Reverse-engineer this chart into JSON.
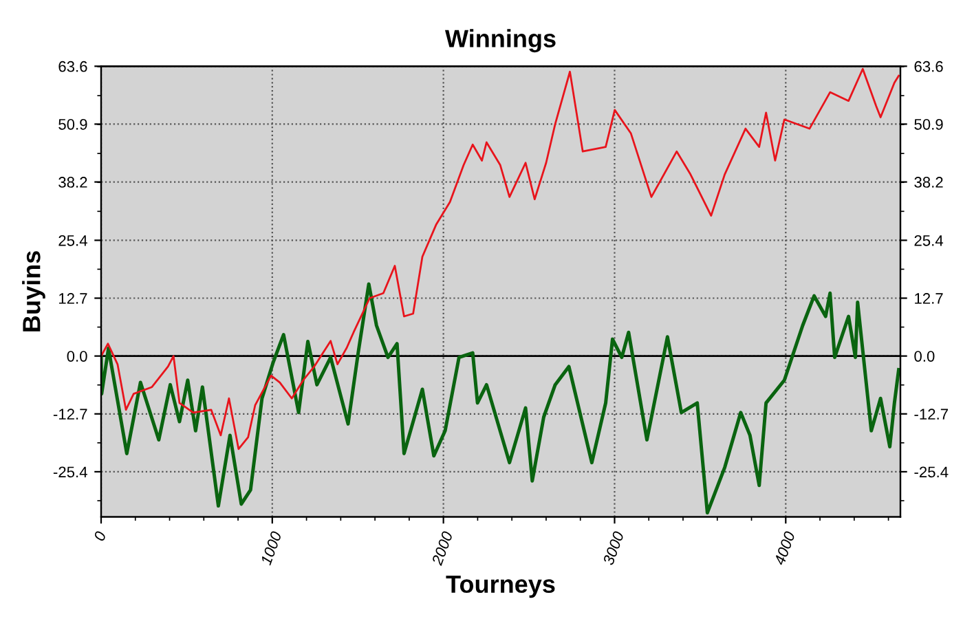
{
  "chart_data": {
    "type": "line",
    "title": "Winnings",
    "xlabel": "Tourneys",
    "ylabel": "Buyins",
    "xlim": [
      0,
      4670
    ],
    "xticks": [
      0,
      1000,
      2000,
      3000,
      4000
    ],
    "ylim": [
      -35.3,
      63.6
    ],
    "yticks": [
      -25.4,
      -12.7,
      {
        "value": 0,
        "label": "0.0"
      },
      12.7,
      25.4,
      38.2,
      50.9,
      63.6
    ],
    "y2lim": [
      -35.3,
      63.6
    ],
    "y2ticks": [
      -25.4,
      -12.7,
      {
        "value": 0,
        "label": "0.0"
      },
      12.7,
      25.4,
      38.2,
      50.9,
      63.6
    ],
    "grid": true,
    "legend": false,
    "line_style": "solid",
    "marker": "none",
    "ref_lines": [
      {
        "axis": "y",
        "value": 0,
        "label": null,
        "color": "#000000",
        "line_style": "solid"
      }
    ],
    "series": [
      {
        "color": "#e8141c",
        "x": [
          0,
          40,
          96,
          145,
          190,
          297,
          391,
          423,
          458,
          538,
          643,
          699,
          747,
          803,
          859,
          900,
          993,
          1044,
          1114,
          1181,
          1245,
          1341,
          1381,
          1435,
          1475,
          1569,
          1649,
          1716,
          1770,
          1823,
          1877,
          1957,
          2038,
          2118,
          2171,
          2225,
          2252,
          2332,
          2386,
          2480,
          2533,
          2600,
          2653,
          2739,
          2814,
          2948,
          3001,
          3095,
          3215,
          3363,
          3443,
          3564,
          3644,
          3765,
          3845,
          3885,
          3938,
          3992,
          4139,
          4259,
          4367,
          4450,
          4528,
          4554,
          4635,
          4660
        ],
        "values": [
          0,
          2.7,
          -1.8,
          -11.8,
          -8.3,
          -6.8,
          -2.3,
          0,
          -10.3,
          -12.4,
          -11.8,
          -17.4,
          -9.3,
          -20.4,
          -17.8,
          -10.8,
          -4.3,
          -5.8,
          -9.3,
          -5.3,
          -2.3,
          3.3,
          -1.8,
          1.8,
          5.2,
          12.7,
          13.8,
          19.8,
          8.7,
          9.3,
          21.8,
          28.8,
          33.8,
          41.9,
          46.4,
          42.9,
          46.9,
          41.9,
          34.9,
          42.4,
          34.4,
          42.4,
          50.9,
          62.4,
          44.9,
          45.9,
          54,
          48.9,
          34.9,
          44.9,
          39.9,
          30.8,
          39.9,
          49.9,
          45.9,
          53.4,
          42.9,
          51.9,
          49.9,
          57.9,
          56,
          63,
          54.9,
          52.4,
          60,
          61.5
        ]
      },
      {
        "color": "#0a6410",
        "x": [
          0,
          3,
          43,
          150,
          230,
          337,
          404,
          458,
          506,
          552,
          592,
          685,
          753,
          819,
          873,
          940,
          1006,
          1066,
          1154,
          1208,
          1261,
          1341,
          1443,
          1502,
          1564,
          1609,
          1676,
          1729,
          1770,
          1877,
          1944,
          2010,
          2091,
          2171,
          2199,
          2252,
          2386,
          2480,
          2519,
          2586,
          2653,
          2733,
          2867,
          2948,
          2988,
          3042,
          3082,
          3189,
          3309,
          3390,
          3483,
          3542,
          3644,
          3737,
          3791,
          3845,
          3885,
          3992,
          4099,
          4166,
          4233,
          4259,
          4286,
          4367,
          4407,
          4420,
          4500,
          4554,
          4608,
          4635,
          4660
        ],
        "values": [
          0,
          -8.3,
          1.7,
          -21.4,
          -5.8,
          -18.4,
          -6.3,
          -14.4,
          -5.3,
          -16.4,
          -6.8,
          -32.9,
          -17.4,
          -32.5,
          -29.4,
          -9.3,
          -1.3,
          4.7,
          -12.4,
          3.2,
          -6.3,
          -0.3,
          -14.9,
          0.7,
          15.8,
          6.7,
          -0.3,
          2.7,
          -21.4,
          -7.3,
          -21.9,
          -16.4,
          -0.3,
          0.7,
          -10.3,
          -6.3,
          -23.4,
          -11.4,
          -27.4,
          -13.4,
          -6.3,
          -2.3,
          -23.4,
          -10.3,
          3.7,
          -0.3,
          5.2,
          -18.4,
          4.2,
          -12.4,
          -10.3,
          -34.4,
          -24.4,
          -12.4,
          -17.4,
          -28.4,
          -10.3,
          -5.3,
          6.7,
          13.2,
          8.7,
          13.8,
          -0.3,
          8.7,
          -0.3,
          11.8,
          -16.4,
          -9.3,
          -19.9,
          -10.3,
          -3
        ]
      }
    ]
  }
}
